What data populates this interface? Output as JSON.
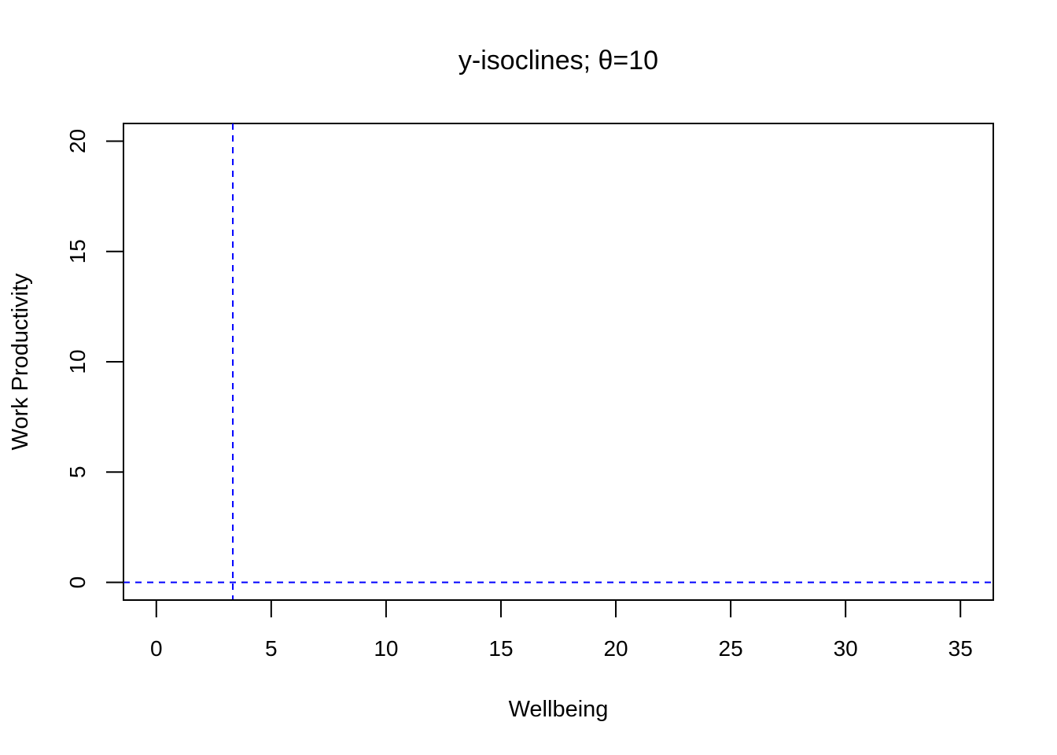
{
  "chart_data": {
    "type": "line",
    "title": "y-isoclines; θ=10",
    "xlabel": "Wellbeing",
    "ylabel": "Work Productivity",
    "xlim": [
      -1.43,
      36.43
    ],
    "ylim": [
      -0.8,
      20.8
    ],
    "x_ticks": [
      0,
      5,
      10,
      15,
      20,
      25,
      30,
      35
    ],
    "y_ticks": [
      0,
      5,
      10,
      15,
      20
    ],
    "grid": false,
    "legend": "none",
    "series": [
      {
        "orientation": "vertical",
        "x": 3.33,
        "color": "#0000FF",
        "style": "dashed"
      },
      {
        "orientation": "horizontal",
        "y": 0,
        "color": "#0000FF",
        "style": "dashed"
      }
    ]
  }
}
